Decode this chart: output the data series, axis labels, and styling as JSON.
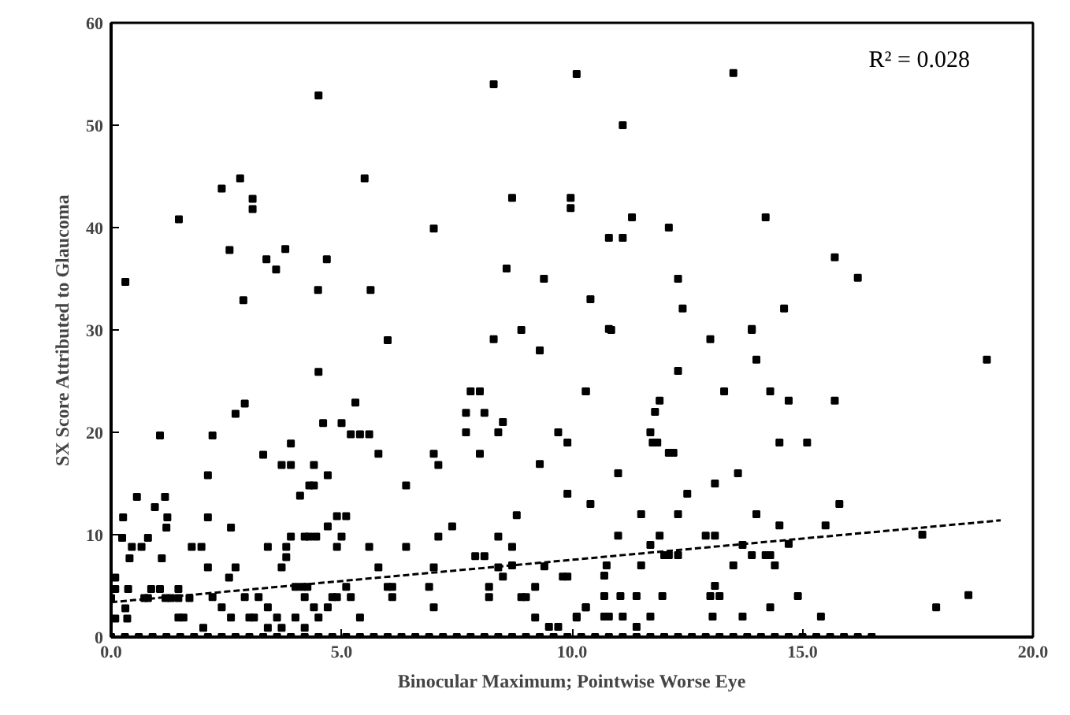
{
  "chart_data": {
    "type": "scatter",
    "xlabel": "Binocular Maximum; Pointwise Worse Eye",
    "ylabel": "SX Score Attributed to Glaucoma",
    "annotations": [
      "R² = 0.028"
    ],
    "xlim": [
      0,
      20
    ],
    "ylim": [
      0,
      60
    ],
    "xticks": [
      {
        "value": 0,
        "label": "0.0"
      },
      {
        "value": 5,
        "label": "5.0"
      },
      {
        "value": 10,
        "label": "10.0"
      },
      {
        "value": 15,
        "label": "15.0"
      },
      {
        "value": 20,
        "label": "20.0"
      }
    ],
    "yticks": [
      0,
      10,
      20,
      30,
      40,
      50,
      60
    ],
    "grid": false,
    "series": [
      {
        "color": "#000000",
        "marker": "square",
        "x": [
          6.0,
          8.3,
          8.9,
          9.3,
          4.5,
          2.9,
          2.7,
          1.06,
          2.2,
          4.6,
          5.0,
          5.2,
          5.3,
          5.4,
          5.6,
          5.8,
          7.7,
          7.8,
          8.0,
          7.7,
          8.1,
          8.4,
          8.5,
          8.0,
          9.7,
          9.9,
          9.3,
          10.3,
          3.3,
          3.9,
          3.7,
          3.9,
          4.4,
          4.7,
          4.3,
          4.4,
          4.1,
          2.1,
          0.56,
          1.17,
          0.95,
          0.26,
          1.22,
          1.2,
          2.1,
          2.6,
          0.24,
          0.8,
          0.45,
          0.66,
          0.4,
          1.1,
          1.75,
          1.96,
          2.1,
          2.56,
          2.7,
          3.4,
          3.8,
          3.7,
          3.8,
          3.9,
          4.2,
          4.3,
          4.45,
          4.7,
          4.9,
          5.1,
          4.9,
          5.0,
          5.6,
          5.8,
          6.4,
          6.4,
          7.0,
          7.1,
          7.1,
          7.4,
          7.0,
          7.9,
          8.1,
          8.8,
          8.4,
          8.7,
          8.4,
          8.7,
          8.5,
          9.9,
          9.4,
          9.9,
          9.8,
          8.2,
          8.2,
          8.9,
          9.0,
          9.2,
          9.2,
          9.5,
          9.7,
          10.1,
          10.3,
          6.9,
          7.0,
          6.0,
          6.1,
          6.1,
          5.1,
          4.8,
          4.9,
          5.2,
          5.4,
          4.5,
          4.7,
          4.4,
          4.2,
          4.0,
          4.15,
          4.26,
          4.0,
          4.2,
          3.7,
          3.4,
          3.6,
          3.4,
          3.2,
          2.9,
          3.0,
          3.1,
          2.6,
          2.4,
          2.2,
          2.0,
          1.46,
          1.57,
          1.46,
          1.18,
          1.3,
          1.46,
          1.7,
          0.87,
          1.06,
          0.72,
          0.8,
          0.31,
          0.09,
          0.35,
          0.09,
          0.09,
          0.0,
          0.37,
          10.8,
          13.0,
          13.9,
          14.0,
          12.3,
          10.3,
          13.3,
          14.3,
          14.7,
          15.7,
          19.0,
          11.9,
          11.8,
          11.7,
          11.75,
          11.85,
          12.1,
          12.2,
          11.0,
          13.6,
          13.1,
          12.5,
          15.1,
          14.5,
          10.4,
          15.8,
          11.5,
          12.3,
          14.0,
          14.5,
          15.5,
          11.0,
          11.9,
          12.9,
          13.1,
          11.7,
          12.0,
          12.1,
          12.3,
          13.7,
          13.9,
          14.2,
          14.3,
          14.7,
          17.6,
          10.75,
          11.5,
          13.5,
          14.4,
          10.7,
          10.7,
          11.05,
          11.4,
          11.96,
          13.1,
          13.0,
          13.2,
          14.9,
          10.3,
          14.3,
          17.9,
          18.6,
          10.1,
          10.7,
          10.8,
          11.1,
          11.7,
          13.05,
          13.7,
          15.4,
          11.4,
          4.5,
          8.3,
          10.1,
          2.8,
          2.4,
          5.5,
          3.07,
          3.07,
          1.47,
          8.7,
          9.97,
          9.97,
          7.0,
          2.57,
          3.78,
          3.37,
          3.58,
          4.68,
          0.31,
          4.49,
          5.63,
          2.87,
          8.58,
          9.39,
          13.5,
          11.1,
          11.3,
          12.1,
          10.8,
          11.1,
          14.2,
          15.7,
          16.2,
          12.3,
          10.4,
          12.4,
          14.6,
          10.85,
          13.9,
          0.0,
          0.3,
          0.6,
          0.9,
          1.2,
          1.5,
          1.8,
          2.1,
          2.4,
          2.7,
          3.0,
          3.3,
          3.6,
          3.9,
          4.2,
          4.5,
          4.8,
          5.1,
          5.4,
          5.7,
          6.0,
          6.3,
          6.6,
          6.9,
          7.2,
          7.5,
          7.8,
          8.1,
          8.4,
          8.7,
          9.0,
          9.3,
          9.6,
          9.9,
          10.2,
          10.5,
          10.8,
          11.1,
          11.4,
          11.7,
          12.0,
          12.3,
          12.6,
          12.9,
          13.2,
          13.5,
          13.8,
          14.1,
          14.4,
          14.7,
          15.0,
          15.3,
          15.6,
          15.9,
          16.2,
          16.5
        ],
        "values": [
          29.0,
          29.1,
          30.0,
          28.0,
          25.9,
          22.8,
          21.8,
          19.7,
          19.7,
          20.9,
          20.9,
          19.8,
          22.9,
          19.8,
          19.8,
          17.9,
          21.9,
          24.0,
          24.0,
          20.0,
          21.9,
          20.0,
          21.0,
          17.9,
          20.0,
          19.0,
          16.9,
          24.0,
          17.8,
          18.9,
          16.8,
          16.8,
          16.8,
          15.8,
          14.8,
          14.8,
          13.8,
          15.8,
          13.7,
          13.7,
          12.7,
          11.7,
          11.7,
          10.7,
          11.7,
          10.7,
          9.7,
          9.7,
          8.8,
          8.8,
          7.7,
          7.7,
          8.8,
          8.8,
          6.8,
          5.8,
          6.8,
          8.8,
          8.8,
          6.8,
          7.8,
          9.8,
          9.8,
          9.8,
          9.8,
          10.8,
          11.8,
          11.8,
          8.8,
          9.8,
          8.8,
          6.8,
          14.8,
          8.8,
          17.9,
          16.8,
          9.8,
          10.8,
          6.8,
          7.9,
          7.9,
          11.9,
          9.8,
          8.8,
          6.8,
          7.0,
          5.9,
          14.0,
          6.9,
          5.9,
          5.9,
          4.9,
          3.9,
          3.9,
          3.9,
          4.9,
          1.9,
          1.0,
          1.0,
          1.9,
          2.9,
          4.9,
          2.9,
          4.9,
          4.9,
          3.9,
          4.9,
          3.9,
          3.9,
          3.9,
          1.9,
          1.9,
          2.9,
          2.9,
          3.9,
          4.9,
          4.9,
          4.9,
          1.9,
          0.9,
          0.9,
          0.9,
          1.9,
          2.9,
          3.9,
          3.9,
          1.9,
          1.9,
          1.9,
          2.9,
          3.9,
          0.9,
          1.9,
          1.9,
          4.7,
          3.8,
          3.8,
          3.8,
          3.8,
          4.7,
          4.7,
          3.8,
          3.8,
          2.8,
          1.8,
          1.8,
          5.8,
          4.7,
          3.8,
          4.7,
          30.1,
          29.1,
          30.1,
          27.1,
          26.0,
          24.0,
          24.0,
          24.0,
          23.1,
          23.1,
          27.1,
          23.1,
          22.0,
          20.0,
          19.0,
          19.0,
          18.0,
          18.0,
          16.0,
          16.0,
          15.0,
          14.0,
          19.0,
          19.0,
          13.0,
          13.0,
          12.0,
          12.0,
          12.0,
          10.9,
          10.9,
          9.9,
          9.9,
          9.9,
          9.9,
          9.0,
          8.0,
          8.0,
          8.0,
          9.0,
          8.0,
          8.0,
          8.0,
          9.1,
          10.0,
          7.0,
          7.0,
          7.0,
          7.0,
          6.0,
          4.0,
          4.0,
          4.0,
          4.0,
          5.0,
          4.0,
          4.0,
          4.0,
          2.9,
          2.9,
          2.9,
          4.1,
          2.0,
          2.0,
          2.0,
          2.0,
          2.0,
          2.0,
          2.0,
          2.0,
          1.0,
          52.9,
          54.0,
          55.0,
          44.8,
          43.8,
          44.8,
          42.8,
          41.8,
          40.8,
          42.9,
          42.9,
          41.9,
          39.9,
          37.8,
          37.9,
          36.9,
          35.9,
          36.9,
          34.7,
          33.9,
          33.9,
          32.9,
          36.0,
          35.0,
          55.1,
          50.0,
          41.0,
          40.0,
          39.0,
          39.0,
          41.0,
          37.1,
          35.1,
          35.0,
          33.0,
          32.1,
          32.1,
          30.0,
          30.0,
          0,
          0,
          0,
          0,
          0,
          0,
          0,
          0,
          0,
          0,
          0,
          0,
          0,
          0,
          0,
          0,
          0,
          0,
          0,
          0,
          0,
          0,
          0,
          0,
          0,
          0,
          0,
          0,
          0,
          0,
          0,
          0,
          0,
          0,
          0,
          0,
          0,
          0,
          0,
          0,
          0,
          0,
          0,
          0,
          0,
          0,
          0,
          0,
          0,
          0,
          0,
          0,
          0,
          0,
          0,
          0
        ]
      },
      {
        "type": "line",
        "color": "#000000",
        "line_style": "dashed",
        "marker": "none",
        "x": [
          0,
          19.3
        ],
        "values": [
          3.4,
          11.4
        ]
      }
    ]
  }
}
